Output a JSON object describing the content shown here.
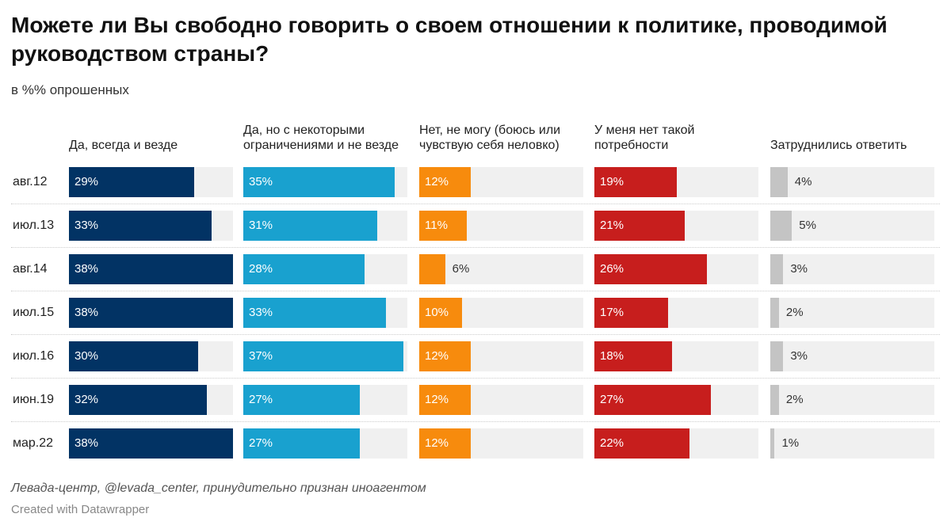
{
  "title": "Можете ли Вы свободно говорить о своем отношении к политике, проводимой руководством страны?",
  "subtitle": "в %% опрошенных",
  "source": "Левада-центр, @levada_center, принудительно признан иноагентом",
  "credit": "Created with Datawrapper",
  "chart_data": {
    "type": "bar",
    "title": "Можете ли Вы свободно говорить о своем отношении к политике, проводимой руководством страны?",
    "subtitle": "в %% опрошенных",
    "categories": [
      "авг.12",
      "июл.13",
      "авг.14",
      "июл.15",
      "июл.16",
      "июн.19",
      "мар.22"
    ],
    "unit": "%",
    "xlim": [
      0,
      38
    ],
    "series": [
      {
        "name": "Да, всегда и везде",
        "color": "#023364",
        "values": [
          29,
          33,
          38,
          38,
          30,
          32,
          38
        ]
      },
      {
        "name": "Да, но с некоторыми ограничениями и не везде",
        "color": "#19a1cf",
        "values": [
          35,
          31,
          28,
          33,
          37,
          27,
          27
        ]
      },
      {
        "name": "Нет, не могу (боюсь или чувствую себя неловко)",
        "color": "#f78b0d",
        "values": [
          12,
          11,
          6,
          10,
          12,
          12,
          12
        ]
      },
      {
        "name": "У меня нет такой потребности",
        "color": "#c71e1d",
        "values": [
          19,
          21,
          26,
          17,
          18,
          27,
          22
        ]
      },
      {
        "name": "Затруднились ответить",
        "color": "#c4c4c4",
        "values": [
          4,
          5,
          3,
          2,
          3,
          2,
          1
        ]
      }
    ]
  }
}
